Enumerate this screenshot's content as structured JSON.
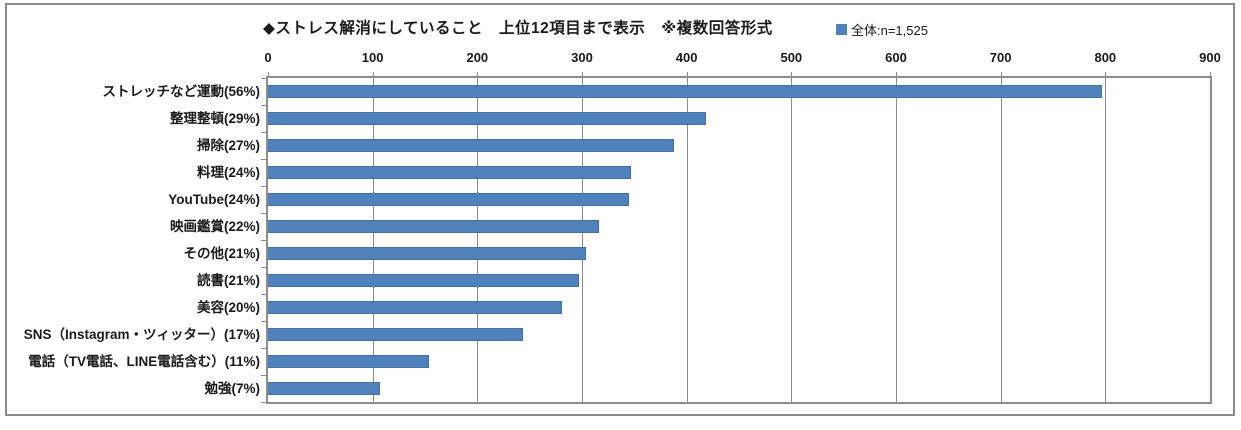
{
  "chart": {
    "title": "◆ストレス解消にしていること　上位12項目まで表示　※複数回答形式",
    "legend": {
      "label": "全体:n=1,525",
      "marker_color": "#4F81BD"
    },
    "colors": {
      "bar_fill": "#4F81BD",
      "bar_border": "#46709F",
      "gridline": "#8C8C8C",
      "plot_border": "#8C8C8C",
      "frame_border": "#8A8A8A",
      "text": "#1A1A1A"
    }
  },
  "chart_data": {
    "type": "bar",
    "orientation": "horizontal",
    "title": "◆ストレス解消にしていること　上位12項目まで表示　※複数回答形式",
    "legend_entries": [
      "全体:n=1,525"
    ],
    "legend_position": "top-right",
    "n_total": "1,525",
    "categories": [
      "ストレッチなど運動(56%)",
      "整理整頓(29%)",
      "掃除(27%)",
      "料理(24%)",
      "YouTube(24%)",
      "映画鑑賞(22%)",
      "その他(21%)",
      "読書(21%)",
      "美容(20%)",
      "SNS（Instagram・ツィッター）(17%)",
      "電話（TV電話、LINE電話含む）(11%)",
      "勉強(7%)"
    ],
    "percent_labels": [
      "56%",
      "29%",
      "27%",
      "24%",
      "24%",
      "22%",
      "21%",
      "21%",
      "20%",
      "17%",
      "11%",
      "7%"
    ],
    "values": [
      797,
      418,
      388,
      347,
      345,
      316,
      304,
      297,
      281,
      244,
      154,
      107
    ],
    "xlim": [
      0,
      900
    ],
    "xticks": [
      0,
      100,
      200,
      300,
      400,
      500,
      600,
      700,
      800,
      900
    ],
    "grid": true
  }
}
